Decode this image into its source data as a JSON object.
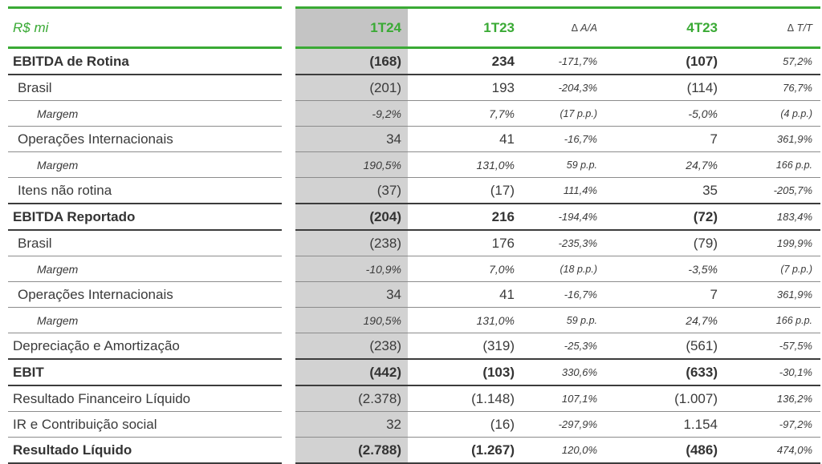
{
  "header": {
    "unit": "R$ mi",
    "col_1t24": "1T24",
    "col_1t23": "1T23",
    "col_delta_aa": "∆ A/A",
    "col_4t23": "4T23",
    "col_delta_tt": "∆ T/T"
  },
  "rows": [
    {
      "label": "EBITDA de Rotina",
      "v1t24": "(168)",
      "v1t23": "234",
      "d_aa": "-171,7%",
      "v4t23": "(107)",
      "d_tt": "57,2%"
    },
    {
      "label": "Brasil",
      "v1t24": "(201)",
      "v1t23": "193",
      "d_aa": "-204,3%",
      "v4t23": "(114)",
      "d_tt": "76,7%"
    },
    {
      "label": "Margem",
      "v1t24": "-9,2%",
      "v1t23": "7,7%",
      "d_aa": "(17 p.p.)",
      "v4t23": "-5,0%",
      "d_tt": "(4 p.p.)"
    },
    {
      "label": "Operações Internacionais",
      "v1t24": "34",
      "v1t23": "41",
      "d_aa": "-16,7%",
      "v4t23": "7",
      "d_tt": "361,9%"
    },
    {
      "label": "Margem",
      "v1t24": "190,5%",
      "v1t23": "131,0%",
      "d_aa": "59  p.p.",
      "v4t23": "24,7%",
      "d_tt": "166  p.p."
    },
    {
      "label": "Itens não rotina",
      "v1t24": "(37)",
      "v1t23": "(17)",
      "d_aa": "111,4%",
      "v4t23": "35",
      "d_tt": "-205,7%"
    },
    {
      "label": "EBITDA Reportado",
      "v1t24": "(204)",
      "v1t23": "216",
      "d_aa": "-194,4%",
      "v4t23": "(72)",
      "d_tt": "183,4%"
    },
    {
      "label": "Brasil",
      "v1t24": "(238)",
      "v1t23": "176",
      "d_aa": "-235,3%",
      "v4t23": "(79)",
      "d_tt": "199,9%"
    },
    {
      "label": "Margem",
      "v1t24": "-10,9%",
      "v1t23": "7,0%",
      "d_aa": "(18 p.p.)",
      "v4t23": "-3,5%",
      "d_tt": "(7 p.p.)"
    },
    {
      "label": "Operações Internacionais",
      "v1t24": "34",
      "v1t23": "41",
      "d_aa": "-16,7%",
      "v4t23": "7",
      "d_tt": "361,9%"
    },
    {
      "label": "Margem",
      "v1t24": "190,5%",
      "v1t23": "131,0%",
      "d_aa": "59  p.p.",
      "v4t23": "24,7%",
      "d_tt": "166  p.p."
    },
    {
      "label": "Depreciação e Amortização",
      "v1t24": "(238)",
      "v1t23": "(319)",
      "d_aa": "-25,3%",
      "v4t23": "(561)",
      "d_tt": "-57,5%"
    },
    {
      "label": "EBIT",
      "v1t24": "(442)",
      "v1t23": "(103)",
      "d_aa": "330,6%",
      "v4t23": "(633)",
      "d_tt": "-30,1%"
    },
    {
      "label": "Resultado Financeiro Líquido",
      "v1t24": "(2.378)",
      "v1t23": "(1.148)",
      "d_aa": "107,1%",
      "v4t23": "(1.007)",
      "d_tt": "136,2%"
    },
    {
      "label": "IR e Contribuição social",
      "v1t24": "32",
      "v1t23": "(16)",
      "d_aa": "-297,9%",
      "v4t23": "1.154",
      "d_tt": "-97,2%"
    },
    {
      "label": "Resultado Líquido",
      "v1t24": "(2.788)",
      "v1t23": "(1.267)",
      "d_aa": "120,0%",
      "v4t23": "(486)",
      "d_tt": "474,0%"
    }
  ]
}
